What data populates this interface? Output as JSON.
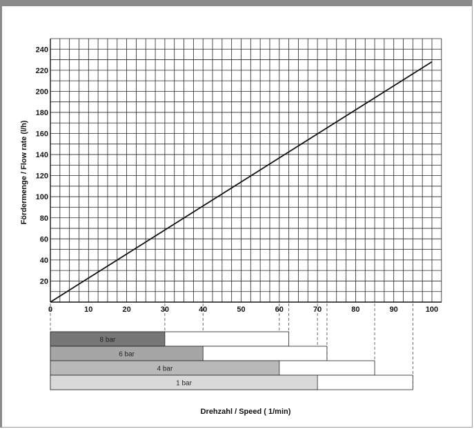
{
  "chart_data": {
    "type": "line",
    "title": "",
    "xlabel": "Drehzahl / Speed ( 1/min)",
    "ylabel": "Fördermenge / Flow rate (l/h)",
    "xlim": [
      0,
      100
    ],
    "ylim": [
      0,
      250
    ],
    "x_ticks": [
      0,
      10,
      20,
      30,
      40,
      50,
      60,
      70,
      80,
      90,
      100
    ],
    "y_ticks": [
      20,
      40,
      60,
      80,
      100,
      120,
      140,
      160,
      180,
      200,
      220,
      240
    ],
    "grid": true,
    "series": [
      {
        "x": [
          0,
          100
        ],
        "y": [
          0,
          228
        ]
      }
    ],
    "pressure_ranges": [
      {
        "label": "8 bar",
        "shaded_to": 30,
        "total_to": 62.5,
        "color": "#777777"
      },
      {
        "label": "6 bar",
        "shaded_to": 40,
        "total_to": 72.5,
        "color": "#a6a6a6"
      },
      {
        "label": "4 bar",
        "shaded_to": 60,
        "total_to": 85,
        "color": "#b9b9b9"
      },
      {
        "label": "1 bar",
        "shaded_to": 70,
        "total_to": 95,
        "color": "#d9d9d9"
      }
    ]
  }
}
